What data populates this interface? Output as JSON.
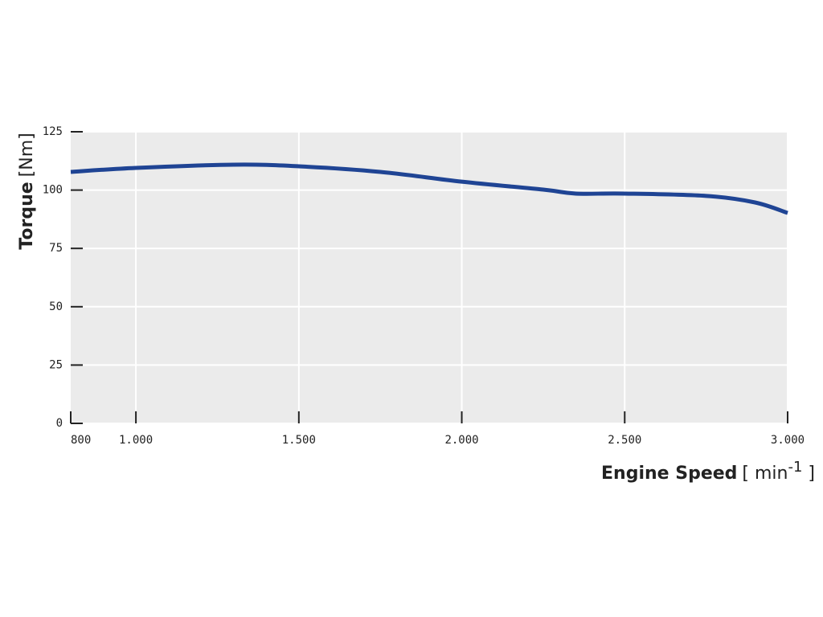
{
  "chart_data": {
    "type": "line",
    "ylabel": "Torque",
    "yunit": "[Nm]",
    "xlabel": "Engine Speed",
    "xunit": [
      "[ min",
      "-1",
      " ]"
    ],
    "x": [
      800,
      1000,
      1300,
      1500,
      1750,
      2000,
      2250,
      2350,
      2500,
      2750,
      2900,
      3000
    ],
    "series": [
      {
        "color": "#1f4494",
        "values": [
          107.8,
          109.5,
          110.9,
          110.2,
          107.8,
          103.6,
          100.2,
          98.5,
          98.5,
          97.5,
          94.7,
          90.2
        ]
      }
    ],
    "xlim": [
      800,
      3000
    ],
    "xticks": [
      800,
      {
        "value": 1000,
        "label": "1.000"
      },
      {
        "value": 1500,
        "label": "1.500"
      },
      {
        "value": 2000,
        "label": "2.000"
      },
      {
        "value": 2500,
        "label": "2.500"
      },
      {
        "value": 3000,
        "label": "3.000"
      }
    ],
    "ylim": [
      0,
      125
    ],
    "yticks": [
      0,
      25,
      50,
      75,
      100,
      125
    ],
    "grid": true
  }
}
